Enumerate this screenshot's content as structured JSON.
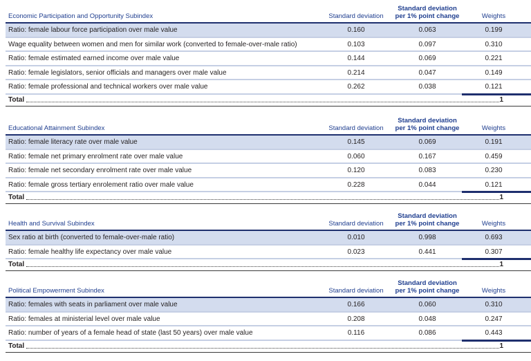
{
  "headers": {
    "std_dev": "Standard deviation",
    "std_dev_pp": "Standard deviation\nper 1% point change",
    "weights": "Weights"
  },
  "sections": [
    {
      "title": "Economic Participation and Opportunity Subindex",
      "rows": [
        {
          "label": "Ratio: female labour force participation over male value",
          "sd": "0.160",
          "sdpp": "0.063",
          "w": "0.199"
        },
        {
          "label": "Wage equality between women and men for similar work (converted to female-over-male ratio)",
          "sd": "0.103",
          "sdpp": "0.097",
          "w": "0.310"
        },
        {
          "label": "Ratio: female estimated earned income over male value",
          "sd": "0.144",
          "sdpp": "0.069",
          "w": "0.221"
        },
        {
          "label": "Ratio: female legislators, senior officials and managers over male value",
          "sd": "0.214",
          "sdpp": "0.047",
          "w": "0.149"
        },
        {
          "label": "Ratio: female professional and technical workers over male value",
          "sd": "0.262",
          "sdpp": "0.038",
          "w": "0.121"
        }
      ],
      "total_label": "Total",
      "total_value": "1"
    },
    {
      "title": "Educational Attainment Subindex",
      "rows": [
        {
          "label": "Ratio: female literacy rate over male value",
          "sd": "0.145",
          "sdpp": "0.069",
          "w": "0.191"
        },
        {
          "label": "Ratio: female net primary  enrolment rate over male value",
          "sd": "0.060",
          "sdpp": "0.167",
          "w": "0.459"
        },
        {
          "label": "Ratio: female net secondary  enrolment rate over male value",
          "sd": "0.120",
          "sdpp": "0.083",
          "w": "0.230"
        },
        {
          "label": "Ratio: female gross tertiary enrolement ratio over male value",
          "sd": "0.228",
          "sdpp": "0.044",
          "w": "0.121"
        }
      ],
      "total_label": "Total",
      "total_value": "1"
    },
    {
      "title": "Health and Survival Subindex",
      "rows": [
        {
          "label": "Sex ratio at birth (converted to female-over-male ratio)",
          "sd": "0.010",
          "sdpp": "0.998",
          "w": "0.693"
        },
        {
          "label": "Ratio: female healthy life expectancy over male value",
          "sd": "0.023",
          "sdpp": "0.441",
          "w": "0.307"
        }
      ],
      "total_label": "Total",
      "total_value": "1"
    },
    {
      "title": "Political Empowerment Subindex",
      "rows": [
        {
          "label": "Ratio: females with seats in parliament over male value",
          "sd": "0.166",
          "sdpp": "0.060",
          "w": "0.310"
        },
        {
          "label": "Ratio: females at ministerial level over male value",
          "sd": "0.208",
          "sdpp": "0.048",
          "w": "0.247"
        },
        {
          "label": "Ratio: number of years of a female head of state (last 50 years) over male value",
          "sd": "0.116",
          "sdpp": "0.086",
          "w": "0.443"
        }
      ],
      "total_label": "Total",
      "total_value": "1"
    }
  ]
}
